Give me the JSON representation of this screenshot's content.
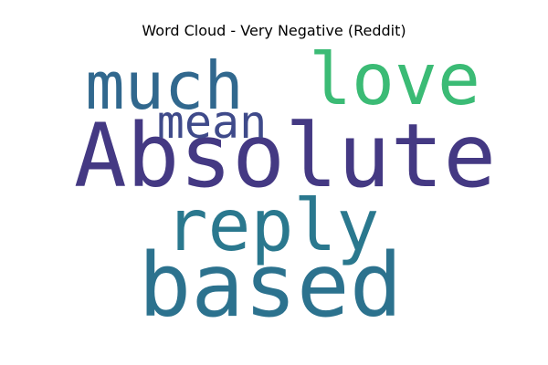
{
  "chart_data": {
    "type": "wordcloud",
    "title": "Word Cloud - Very Negative (Reddit)",
    "words": [
      {
        "text": "Absolute",
        "color": "#443983"
      },
      {
        "text": "much",
        "color": "#31688e"
      },
      {
        "text": "love",
        "color": "#3bbb75"
      },
      {
        "text": "mean",
        "color": "#3f4a8a"
      },
      {
        "text": "reply",
        "color": "#2a788e"
      },
      {
        "text": "based",
        "color": "#2c728e"
      }
    ]
  }
}
